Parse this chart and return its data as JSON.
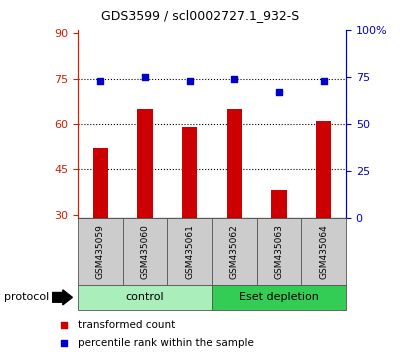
{
  "title": "GDS3599 / scl0002727.1_932-S",
  "categories": [
    "GSM435059",
    "GSM435060",
    "GSM435061",
    "GSM435062",
    "GSM435063",
    "GSM435064"
  ],
  "bar_values": [
    52,
    65,
    59,
    65,
    38,
    61
  ],
  "dot_values": [
    73,
    75,
    73,
    74,
    67,
    73
  ],
  "bar_color": "#CC0000",
  "dot_color": "#0000CC",
  "ylim_left": [
    29,
    91
  ],
  "ylim_right": [
    0,
    100
  ],
  "yticks_left": [
    30,
    45,
    60,
    75,
    90
  ],
  "yticks_right": [
    0,
    25,
    50,
    75,
    100
  ],
  "ytick_labels_right": [
    "0",
    "25",
    "50",
    "75",
    "100%"
  ],
  "hlines": [
    45,
    60,
    75
  ],
  "groups": [
    {
      "label": "control",
      "indices": [
        0,
        1,
        2
      ],
      "color": "#AAEEBB"
    },
    {
      "label": "Eset depletion",
      "indices": [
        3,
        4,
        5
      ],
      "color": "#33CC55"
    }
  ],
  "protocol_label": "protocol",
  "legend_bar_label": "transformed count",
  "legend_dot_label": "percentile rank within the sample",
  "box_color": "#CCCCCC",
  "bar_width": 0.35
}
